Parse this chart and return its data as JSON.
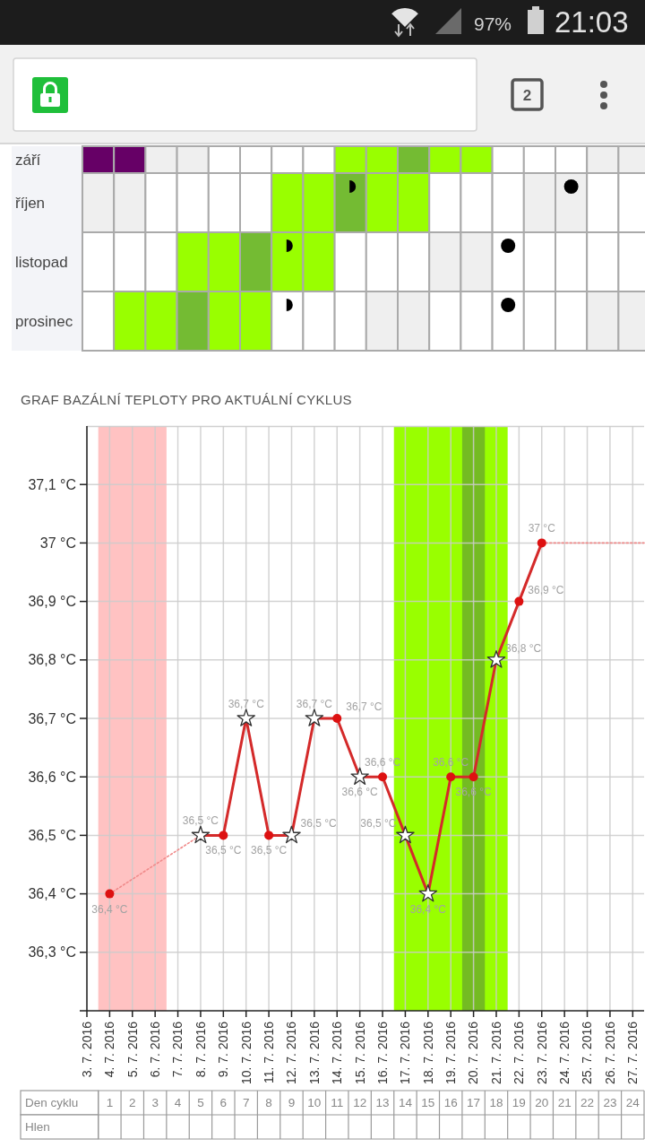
{
  "chart_data": [
    {
      "type": "other",
      "annotations": [
        "97%",
        "21:03",
        "2"
      ]
    },
    {
      "type": "other",
      "y_categories": [
        "září",
        "říjen",
        "listopad",
        "prosinec"
      ]
    },
    {
      "type": "line",
      "title": "GRAF BAZÁLNÍ TEPLOTY PRO AKTUÁLNÍ CYKLUS",
      "xlim": [
        "2016-07-03",
        "2016-07-27T12:00"
      ],
      "xticks": [
        {
          "value": "2016-07-03",
          "label": "3. 7. 2016"
        },
        {
          "value": "2016-07-04",
          "label": "4. 7. 2016"
        },
        {
          "value": "2016-07-05",
          "label": "5. 7. 2016"
        },
        {
          "value": "2016-07-06",
          "label": "6. 7. 2016"
        },
        {
          "value": "2016-07-07",
          "label": "7. 7. 2016"
        },
        {
          "value": "2016-07-08",
          "label": "8. 7. 2016"
        },
        {
          "value": "2016-07-09",
          "label": "9. 7. 2016"
        },
        {
          "value": "2016-07-10",
          "label": "10. 7. 2016"
        },
        {
          "value": "2016-07-11",
          "label": "11. 7. 2016"
        },
        {
          "value": "2016-07-12",
          "label": "12. 7. 2016"
        },
        {
          "value": "2016-07-13",
          "label": "13. 7. 2016"
        },
        {
          "value": "2016-07-14",
          "label": "14. 7. 2016"
        },
        {
          "value": "2016-07-15",
          "label": "15. 7. 2016"
        },
        {
          "value": "2016-07-16",
          "label": "16. 7. 2016"
        },
        {
          "value": "2016-07-17",
          "label": "17. 7. 2016"
        },
        {
          "value": "2016-07-18",
          "label": "18. 7. 2016"
        },
        {
          "value": "2016-07-19",
          "label": "19. 7. 2016"
        },
        {
          "value": "2016-07-20",
          "label": "20. 7. 2016"
        },
        {
          "value": "2016-07-21",
          "label": "21. 7. 2016"
        },
        {
          "value": "2016-07-22",
          "label": "22. 7. 2016"
        },
        {
          "value": "2016-07-23",
          "label": "23. 7. 2016"
        },
        {
          "value": "2016-07-24",
          "label": "24. 7. 2016"
        },
        {
          "value": "2016-07-25",
          "label": "25. 7. 2016"
        },
        {
          "value": "2016-07-26",
          "label": "26. 7. 2016"
        },
        {
          "value": "2016-07-27",
          "label": "27. 7. 2016"
        }
      ],
      "ylim": [
        36.2,
        37.2
      ],
      "yticks": [
        {
          "value": 36.3,
          "label": "36,3 °C"
        },
        {
          "value": 36.4,
          "label": "36,4 °C"
        },
        {
          "value": 36.5,
          "label": "36,5 °C"
        },
        {
          "value": 36.6,
          "label": "36,6 °C"
        },
        {
          "value": 36.7,
          "label": "36,7 °C"
        },
        {
          "value": 36.8,
          "label": "36,8 °C"
        },
        {
          "value": 36.9,
          "label": "36,9 °C"
        },
        {
          "value": 37,
          "label": "37 °C"
        },
        {
          "value": 37.1,
          "label": "37,1 °C"
        }
      ],
      "x2label": "Den cyklu",
      "x2lim": [
        0.5,
        24.5
      ],
      "x2ticks": [
        1,
        2,
        3,
        4,
        5,
        6,
        7,
        8,
        9,
        10,
        11,
        12,
        13,
        14,
        15,
        16,
        17,
        18,
        19,
        20,
        21,
        22,
        23,
        24
      ],
      "annotations": [
        "Hlen"
      ],
      "grid": true,
      "bands": [
        {
          "axis": "x",
          "from": "2016-07-03T12:00",
          "to": "2016-07-06T12:00",
          "color": "#ffc2c2"
        },
        {
          "axis": "x",
          "from": "2016-07-16T12:00",
          "to": "2016-07-21T12:00",
          "color": "#99ff00"
        },
        {
          "axis": "x",
          "from": "2016-07-19T12:00",
          "to": "2016-07-20T12:00",
          "color": "#74bb22"
        }
      ],
      "series": [
        {
          "type": "line",
          "color": "#f08a8a",
          "line_style": "dotted",
          "x": [
            "2016-07-04",
            "2016-07-08"
          ],
          "values": [
            36.4,
            36.5
          ]
        },
        {
          "type": "line",
          "color": "#f08a8a",
          "line_style": "dotted",
          "x": [
            "2016-07-23",
            "2016-07-27T12:00"
          ],
          "values": [
            37,
            37
          ]
        },
        {
          "type": "line",
          "color": "#d42a2a",
          "line_style": "solid",
          "x": [
            "2016-07-08",
            "2016-07-09",
            "2016-07-10",
            "2016-07-11",
            "2016-07-12",
            "2016-07-13",
            "2016-07-14",
            "2016-07-15",
            "2016-07-16",
            "2016-07-17",
            "2016-07-18",
            "2016-07-19",
            "2016-07-20",
            "2016-07-21",
            "2016-07-22",
            "2016-07-23"
          ],
          "values": [
            36.5,
            36.5,
            36.7,
            36.5,
            36.5,
            36.7,
            36.7,
            36.6,
            36.6,
            36.5,
            36.4,
            36.6,
            36.6,
            36.8,
            36.9,
            37
          ]
        },
        {
          "type": "scatter",
          "marker": "circle",
          "color": "#dd1111",
          "x": [
            "2016-07-04",
            "2016-07-09",
            "2016-07-11",
            "2016-07-14",
            "2016-07-16",
            "2016-07-19",
            "2016-07-20",
            "2016-07-22",
            "2016-07-23"
          ],
          "values": [
            36.4,
            36.5,
            36.5,
            36.7,
            36.6,
            36.6,
            36.6,
            36.9,
            37
          ],
          "value_labels": [
            "36,4 °C",
            "36,5 °C",
            "36,5 °C",
            "36,7 °C",
            "36,6 °C",
            "36,6 °C",
            "36,6 °C",
            "36,9 °C",
            "37 °C"
          ]
        },
        {
          "type": "scatter",
          "marker": "star",
          "color": "#ffffff",
          "x": [
            "2016-07-08",
            "2016-07-10",
            "2016-07-12",
            "2016-07-13",
            "2016-07-15",
            "2016-07-17",
            "2016-07-18",
            "2016-07-21"
          ],
          "values": [
            36.5,
            36.7,
            36.5,
            36.7,
            36.6,
            36.5,
            36.4,
            36.8
          ],
          "value_labels": [
            "36,5 °C",
            "36,7 °C",
            "36,5 °C",
            "36,7 °C",
            "36,6 °C",
            "36,5 °C",
            "36,4 °C",
            "36,8 °C"
          ]
        }
      ]
    }
  ]
}
